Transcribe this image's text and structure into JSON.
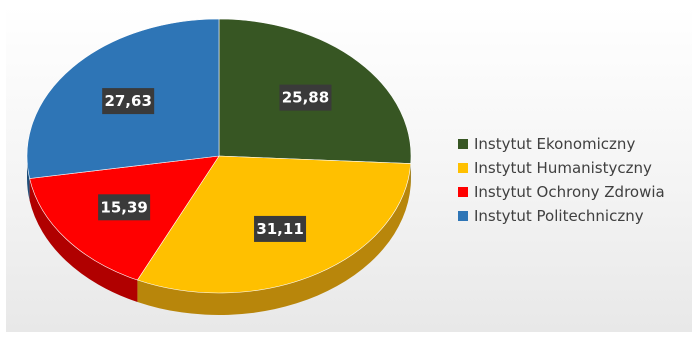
{
  "chart_data": {
    "type": "pie",
    "title": "",
    "series": [
      {
        "values": [
          25.88,
          31.11,
          15.39,
          27.63
        ],
        "labels": [
          "25,88",
          "31,11",
          "15,39",
          "27,63"
        ]
      }
    ],
    "categories": [
      "Instytut Ekonomiczny",
      "Instytut Humanistyczny",
      "Instytut Ochrony Zdrowia",
      "Instytut Politechniczny"
    ],
    "colors": [
      "#375623",
      "#ffc000",
      "#ff0000",
      "#2e75b6"
    ],
    "side_colors": [
      "#243a17",
      "#b8860b",
      "#b00000",
      "#1f4e79"
    ],
    "style": "3d",
    "legend_position": "right"
  }
}
